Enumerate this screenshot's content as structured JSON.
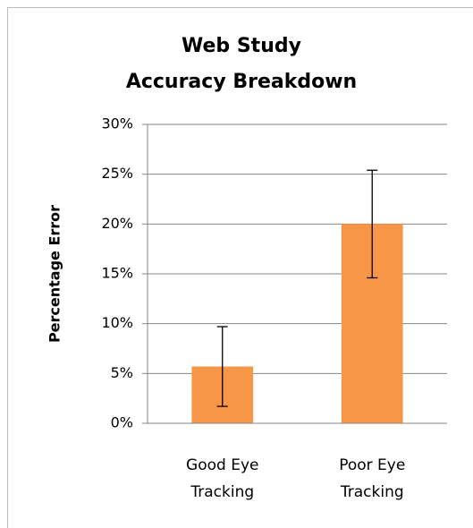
{
  "chart_data": {
    "type": "bar",
    "title": "Web Study\nAccuracy Breakdown",
    "y_label": "Percentage Error",
    "categories": [
      "Good Eye Tracking",
      "Poor Eye Tracking"
    ],
    "values": [
      5.7,
      20.0
    ],
    "errors": [
      4.0,
      5.4
    ],
    "color": "#f79646",
    "ylim": [
      0,
      30
    ],
    "yticks": [
      {
        "value": 0,
        "label": "0%"
      },
      {
        "value": 5,
        "label": "5%"
      },
      {
        "value": 10,
        "label": "10%"
      },
      {
        "value": 15,
        "label": "15%"
      },
      {
        "value": 20,
        "label": "20%"
      },
      {
        "value": 25,
        "label": "25%"
      },
      {
        "value": 30,
        "label": "30%"
      }
    ],
    "grid": true
  }
}
